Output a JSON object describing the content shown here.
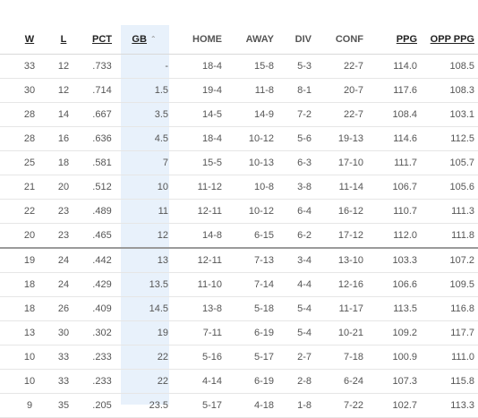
{
  "table": {
    "headers": {
      "w": "W",
      "l": "L",
      "pct": "PCT",
      "gb": "GB",
      "home": "HOME",
      "away": "AWAY",
      "div": "DIV",
      "conf": "CONF",
      "ppg": "PPG",
      "opp_ppg": "OPP PPG"
    },
    "sort_icon": "chevron-up-icon",
    "playoff_cutoff_after_row": 8,
    "rows": [
      {
        "w": "33",
        "l": "12",
        "pct": ".733",
        "gb": "-",
        "home": "18-4",
        "away": "15-8",
        "div": "5-3",
        "conf": "22-7",
        "ppg": "114.0",
        "opp_ppg": "108.5"
      },
      {
        "w": "30",
        "l": "12",
        "pct": ".714",
        "gb": "1.5",
        "home": "19-4",
        "away": "11-8",
        "div": "8-1",
        "conf": "20-7",
        "ppg": "117.6",
        "opp_ppg": "108.3"
      },
      {
        "w": "28",
        "l": "14",
        "pct": ".667",
        "gb": "3.5",
        "home": "14-5",
        "away": "14-9",
        "div": "7-2",
        "conf": "22-7",
        "ppg": "108.4",
        "opp_ppg": "103.1"
      },
      {
        "w": "28",
        "l": "16",
        "pct": ".636",
        "gb": "4.5",
        "home": "18-4",
        "away": "10-12",
        "div": "5-6",
        "conf": "19-13",
        "ppg": "114.6",
        "opp_ppg": "112.5"
      },
      {
        "w": "25",
        "l": "18",
        "pct": ".581",
        "gb": "7",
        "home": "15-5",
        "away": "10-13",
        "div": "6-3",
        "conf": "17-10",
        "ppg": "111.7",
        "opp_ppg": "105.7"
      },
      {
        "w": "21",
        "l": "20",
        "pct": ".512",
        "gb": "10",
        "home": "11-12",
        "away": "10-8",
        "div": "3-8",
        "conf": "11-14",
        "ppg": "106.7",
        "opp_ppg": "105.6"
      },
      {
        "w": "22",
        "l": "23",
        "pct": ".489",
        "gb": "11",
        "home": "12-11",
        "away": "10-12",
        "div": "6-4",
        "conf": "16-12",
        "ppg": "110.7",
        "opp_ppg": "111.3"
      },
      {
        "w": "20",
        "l": "23",
        "pct": ".465",
        "gb": "12",
        "home": "14-8",
        "away": "6-15",
        "div": "6-2",
        "conf": "17-12",
        "ppg": "112.0",
        "opp_ppg": "111.8"
      },
      {
        "w": "19",
        "l": "24",
        "pct": ".442",
        "gb": "13",
        "home": "12-11",
        "away": "7-13",
        "div": "3-4",
        "conf": "13-10",
        "ppg": "103.3",
        "opp_ppg": "107.2"
      },
      {
        "w": "18",
        "l": "24",
        "pct": ".429",
        "gb": "13.5",
        "home": "11-10",
        "away": "7-14",
        "div": "4-4",
        "conf": "12-16",
        "ppg": "106.6",
        "opp_ppg": "109.5"
      },
      {
        "w": "18",
        "l": "26",
        "pct": ".409",
        "gb": "14.5",
        "home": "13-8",
        "away": "5-18",
        "div": "5-4",
        "conf": "11-17",
        "ppg": "113.5",
        "opp_ppg": "116.8"
      },
      {
        "w": "13",
        "l": "30",
        "pct": ".302",
        "gb": "19",
        "home": "7-11",
        "away": "6-19",
        "div": "5-4",
        "conf": "10-21",
        "ppg": "109.2",
        "opp_ppg": "117.7"
      },
      {
        "w": "10",
        "l": "33",
        "pct": ".233",
        "gb": "22",
        "home": "5-16",
        "away": "5-17",
        "div": "2-7",
        "conf": "7-18",
        "ppg": "100.9",
        "opp_ppg": "111.0"
      },
      {
        "w": "10",
        "l": "33",
        "pct": ".233",
        "gb": "22",
        "home": "4-14",
        "away": "6-19",
        "div": "2-8",
        "conf": "6-24",
        "ppg": "107.3",
        "opp_ppg": "115.8"
      },
      {
        "w": "9",
        "l": "35",
        "pct": ".205",
        "gb": "23.5",
        "home": "5-17",
        "away": "4-18",
        "div": "1-8",
        "conf": "7-22",
        "ppg": "102.7",
        "opp_ppg": "113.3"
      }
    ]
  }
}
